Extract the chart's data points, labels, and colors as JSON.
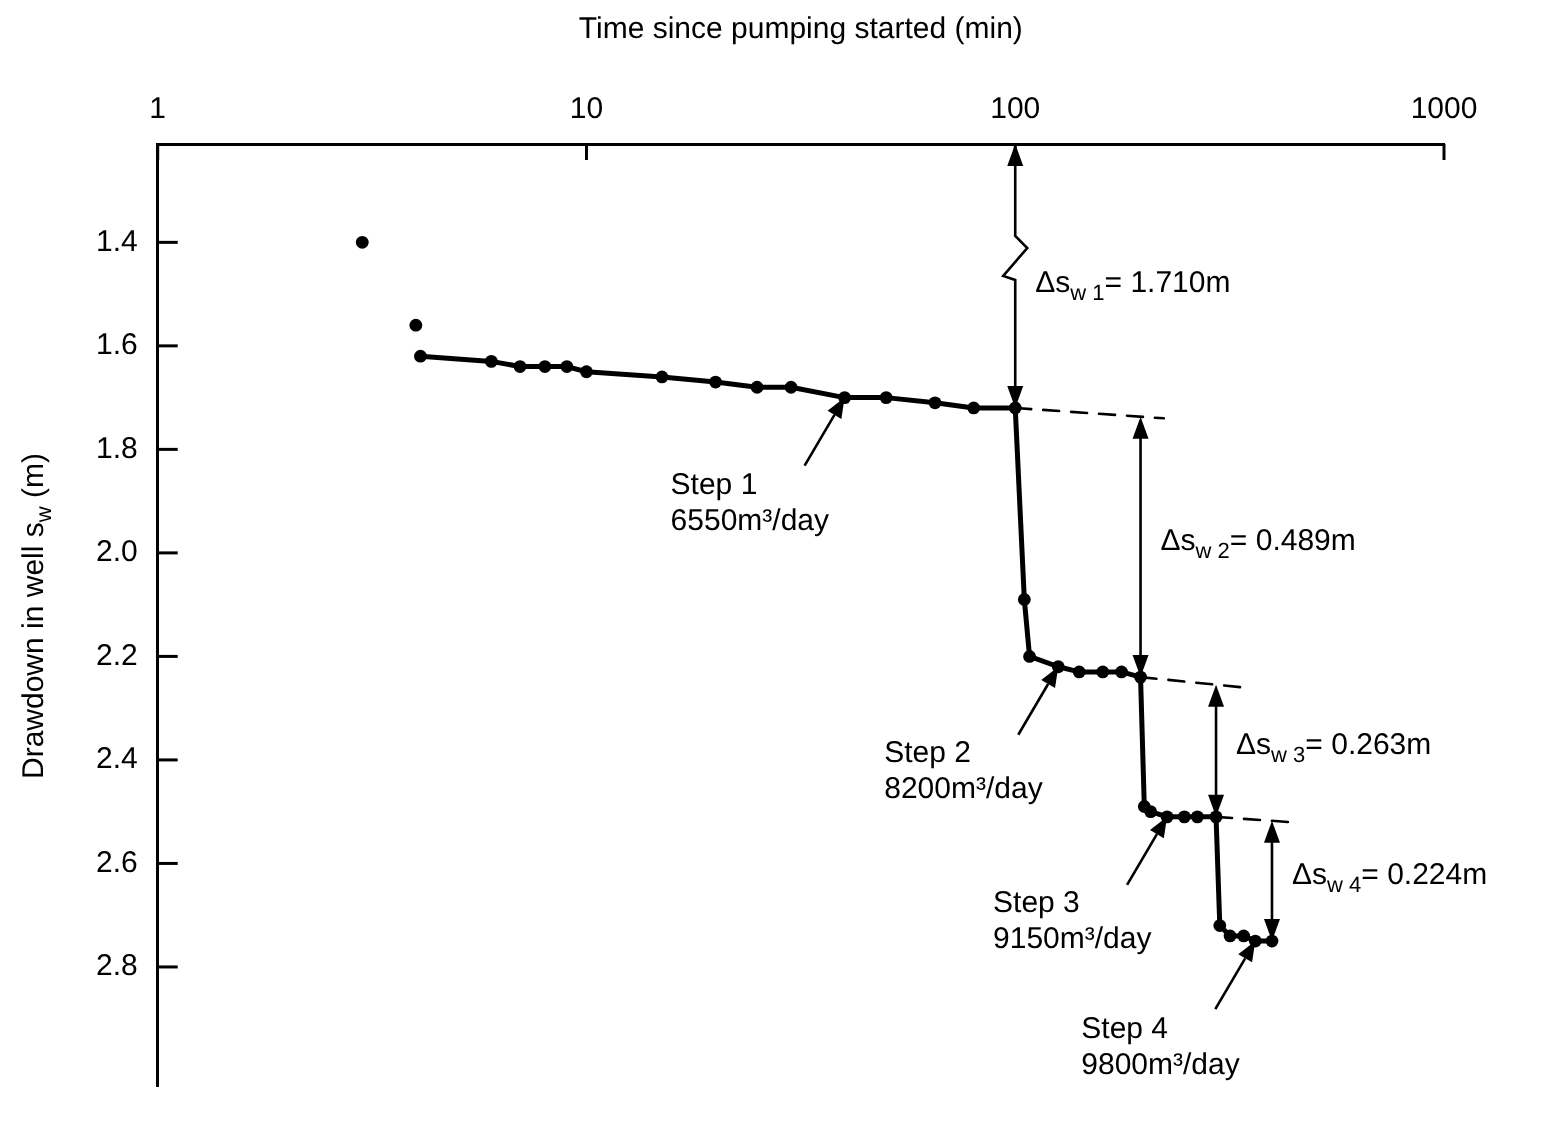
{
  "chart_data": {
    "type": "line",
    "xlabel": "Time since pumping started (min)",
    "ylabel": "Drawdown in well s$_{w}$  (m)",
    "log": "x",
    "xlim": [
      1,
      1000
    ],
    "xticks": [
      1,
      10,
      100,
      1000
    ],
    "ylim": [
      3.03,
      1.21
    ],
    "yticks": [
      1.4,
      1.6,
      1.8,
      {
        "value": 2,
        "label": "2.0"
      },
      2.2,
      2.4,
      2.6,
      2.8
    ],
    "legend": false,
    "series": [
      {
        "type": "scatter",
        "color": "#000000",
        "marker": "circle",
        "x": [
          3,
          4
        ],
        "values": [
          1.4,
          1.56
        ]
      },
      {
        "color": "#000000",
        "marker": "circle",
        "line_style": "solid",
        "x": [
          4.1,
          6,
          7,
          8,
          9,
          10,
          15,
          20,
          25,
          30,
          40,
          50,
          65,
          80,
          100,
          105,
          108,
          126,
          141,
          160,
          177,
          196,
          200,
          207,
          226,
          248,
          266,
          294,
          300,
          317,
          341,
          363,
          397
        ],
        "values": [
          1.62,
          1.63,
          1.64,
          1.64,
          1.64,
          1.65,
          1.66,
          1.67,
          1.68,
          1.68,
          1.7,
          1.7,
          1.71,
          1.72,
          1.72,
          2.09,
          2.2,
          2.22,
          2.23,
          2.23,
          2.23,
          2.24,
          2.49,
          2.5,
          2.51,
          2.51,
          2.51,
          2.51,
          2.72,
          2.74,
          2.74,
          2.75,
          2.75
        ]
      },
      {
        "color": "#000000",
        "marker": "none",
        "line_style": "dashed",
        "x": [
          100,
          222
        ],
        "values": [
          1.72,
          1.74
        ]
      },
      {
        "color": "#000000",
        "marker": "none",
        "line_style": "dashed",
        "x": [
          196,
          341
        ],
        "values": [
          2.24,
          2.26
        ]
      },
      {
        "color": "#000000",
        "marker": "none",
        "line_style": "dashed",
        "x": [
          294,
          435
        ],
        "values": [
          2.51,
          2.52
        ]
      }
    ],
    "annotations": [
      "Δs$_{w 1}$= 1.710m",
      "Δs$_{w 2}$= 0.489m",
      "Δs$_{w 3}$= 0.263m",
      "Δs$_{w 4}$= 0.224m",
      {
        "text": "Step 1\n6550m³/day",
        "x": 40,
        "y": 1.7
      },
      {
        "text": "Step 2\n8200m³/day",
        "x": 126,
        "y": 2.22
      },
      {
        "text": "Step 3\n9150m³/day",
        "x": 226,
        "y": 2.51
      },
      {
        "text": "Step 4\n9800m³/day",
        "x": 363,
        "y": 2.75
      }
    ]
  }
}
